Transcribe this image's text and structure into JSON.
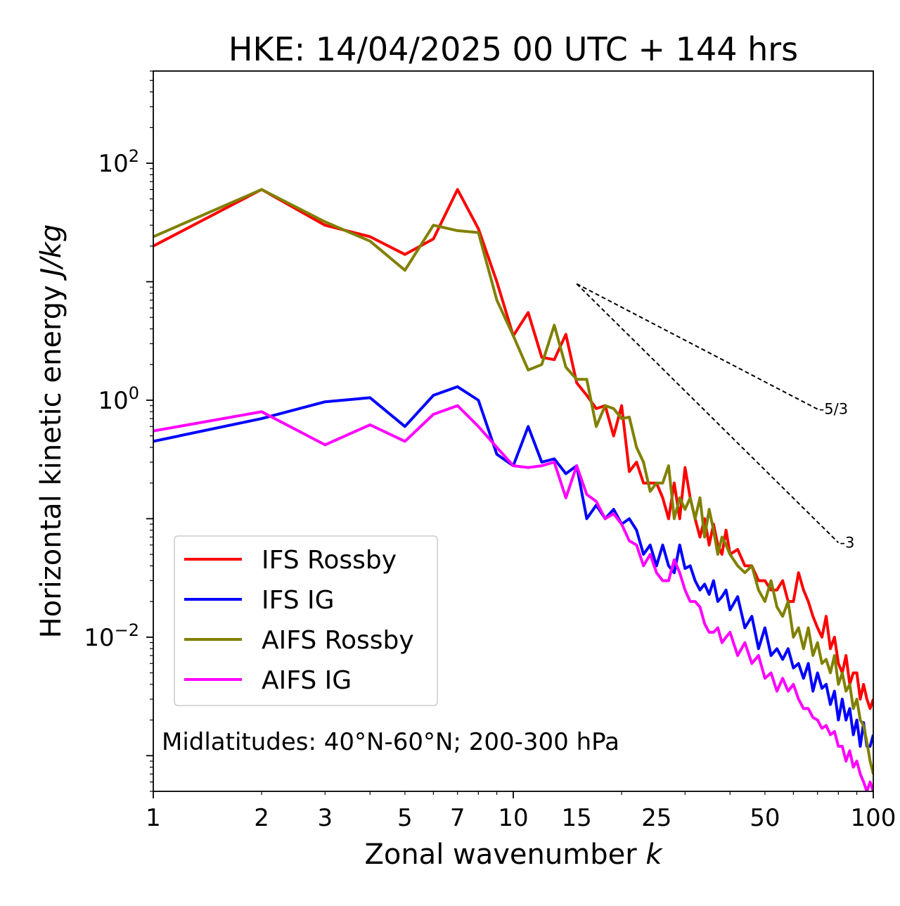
{
  "chart_data": {
    "type": "line",
    "title": "HKE: 14/04/2025 00 UTC + 144 hrs",
    "xlabel_main": "Zonal wavenumber ",
    "xlabel_italic": "k",
    "ylabel_main": "Horizontal kinetic energy ",
    "ylabel_italic": "J/kg",
    "x_scale": "log",
    "y_scale": "log",
    "xlim": [
      1,
      100
    ],
    "ylim": [
      0.0005,
      600
    ],
    "grid": false,
    "legend_position": "lower-left",
    "annotation": "Midlatitudes: 40°N-60°N; 200-300 hPa",
    "x_ticks": [
      {
        "value": 1,
        "label": "1"
      },
      {
        "value": 2,
        "label": "2"
      },
      {
        "value": 3,
        "label": "3"
      },
      {
        "value": 5,
        "label": "5"
      },
      {
        "value": 7,
        "label": "7"
      },
      {
        "value": 10,
        "label": "10"
      },
      {
        "value": 15,
        "label": "15"
      },
      {
        "value": 25,
        "label": "25"
      },
      {
        "value": 50,
        "label": "50"
      },
      {
        "value": 100,
        "label": "100"
      }
    ],
    "y_ticks": [
      {
        "value": 0.01,
        "base": "10",
        "exp": "−2"
      },
      {
        "value": 1,
        "base": "10",
        "exp": "0"
      },
      {
        "value": 100,
        "base": "10",
        "exp": "2"
      }
    ],
    "slope_lines": [
      {
        "label": "-5/3",
        "x0": 15,
        "y0": 9.6,
        "x1": 70,
        "y1": 0.84
      },
      {
        "label": "-3",
        "x0": 15,
        "y0": 9.6,
        "x1": 80,
        "y1": 0.0628
      }
    ],
    "series": [
      {
        "name": "IFS Rossby",
        "color": "#ff0000",
        "x": [
          1,
          2,
          3,
          4,
          5,
          6,
          7,
          8,
          9,
          10,
          11,
          12,
          13,
          14,
          15,
          16,
          17,
          18,
          19,
          20,
          21,
          22,
          23,
          24,
          25,
          26,
          27,
          28,
          29,
          30,
          31,
          32,
          33,
          34,
          35,
          36,
          37,
          38,
          39,
          40,
          42,
          44,
          46,
          48,
          50,
          52,
          54,
          56,
          58,
          60,
          62,
          64,
          66,
          68,
          70,
          72,
          74,
          76,
          78,
          80,
          82,
          84,
          86,
          88,
          90,
          92,
          94,
          96,
          98,
          100
        ],
        "y": [
          20,
          60,
          30,
          24,
          17,
          23,
          60,
          28,
          10,
          3.5,
          5.5,
          2.3,
          2.2,
          3.6,
          1.4,
          1.1,
          0.85,
          0.9,
          0.5,
          0.9,
          0.25,
          0.3,
          0.2,
          0.2,
          0.2,
          0.15,
          0.1,
          0.2,
          0.1,
          0.27,
          0.15,
          0.1,
          0.07,
          0.1,
          0.06,
          0.09,
          0.06,
          0.05,
          0.08,
          0.05,
          0.055,
          0.04,
          0.04,
          0.03,
          0.03,
          0.025,
          0.025,
          0.03,
          0.02,
          0.02,
          0.035,
          0.025,
          0.02,
          0.015,
          0.012,
          0.01,
          0.015,
          0.008,
          0.01,
          0.006,
          0.005,
          0.007,
          0.004,
          0.005,
          0.005,
          0.003,
          0.004,
          0.003,
          0.0025,
          0.003
        ]
      },
      {
        "name": "IFS IG",
        "color": "#0000ff",
        "x": [
          1,
          2,
          3,
          4,
          5,
          6,
          7,
          8,
          9,
          10,
          11,
          12,
          13,
          14,
          15,
          16,
          17,
          18,
          19,
          20,
          21,
          22,
          23,
          24,
          25,
          26,
          27,
          28,
          29,
          30,
          31,
          32,
          33,
          34,
          35,
          36,
          37,
          38,
          39,
          40,
          42,
          44,
          46,
          48,
          50,
          52,
          54,
          56,
          58,
          60,
          62,
          64,
          66,
          68,
          70,
          72,
          74,
          76,
          78,
          80,
          82,
          84,
          86,
          88,
          90,
          92,
          94,
          96,
          98,
          100
        ],
        "y": [
          0.45,
          0.7,
          0.97,
          1.05,
          0.6,
          1.1,
          1.3,
          1.0,
          0.35,
          0.28,
          0.6,
          0.3,
          0.32,
          0.24,
          0.28,
          0.1,
          0.13,
          0.1,
          0.12,
          0.09,
          0.1,
          0.08,
          0.05,
          0.06,
          0.04,
          0.06,
          0.04,
          0.035,
          0.06,
          0.038,
          0.04,
          0.03,
          0.025,
          0.028,
          0.023,
          0.03,
          0.02,
          0.022,
          0.025,
          0.017,
          0.022,
          0.012,
          0.015,
          0.008,
          0.012,
          0.007,
          0.008,
          0.0065,
          0.008,
          0.0055,
          0.006,
          0.0045,
          0.006,
          0.0035,
          0.005,
          0.0037,
          0.004,
          0.0027,
          0.0035,
          0.002,
          0.003,
          0.002,
          0.0025,
          0.0015,
          0.002,
          0.0012,
          0.0019,
          0.0012,
          0.0012,
          0.0015
        ]
      },
      {
        "name": "AIFS Rossby",
        "color": "#808000",
        "x": [
          1,
          2,
          3,
          4,
          5,
          6,
          7,
          8,
          9,
          10,
          11,
          12,
          13,
          14,
          15,
          16,
          17,
          18,
          19,
          20,
          21,
          22,
          23,
          24,
          25,
          26,
          27,
          28,
          29,
          30,
          31,
          32,
          33,
          34,
          35,
          36,
          37,
          38,
          39,
          40,
          42,
          44,
          46,
          48,
          50,
          52,
          54,
          56,
          58,
          60,
          62,
          64,
          66,
          68,
          70,
          72,
          74,
          76,
          78,
          80,
          82,
          84,
          86,
          88,
          90,
          92,
          94,
          96,
          98,
          100
        ],
        "y": [
          24,
          60,
          32,
          22,
          12.5,
          30,
          27,
          26,
          7,
          3.5,
          1.8,
          2.0,
          4.3,
          1.9,
          1.5,
          1.5,
          0.6,
          0.9,
          0.85,
          0.7,
          0.72,
          0.4,
          0.3,
          0.17,
          0.2,
          0.2,
          0.28,
          0.1,
          0.15,
          0.12,
          0.15,
          0.1,
          0.15,
          0.07,
          0.12,
          0.08,
          0.05,
          0.07,
          0.06,
          0.05,
          0.04,
          0.035,
          0.04,
          0.025,
          0.02,
          0.03,
          0.018,
          0.015,
          0.02,
          0.01,
          0.012,
          0.008,
          0.012,
          0.007,
          0.009,
          0.006,
          0.0065,
          0.005,
          0.007,
          0.004,
          0.005,
          0.0035,
          0.004,
          0.0025,
          0.003,
          0.002,
          0.0018,
          0.0013,
          0.0009,
          0.0007
        ]
      },
      {
        "name": "AIFS IG",
        "color": "#ff00ff",
        "x": [
          1,
          2,
          3,
          4,
          5,
          6,
          7,
          8,
          9,
          10,
          11,
          12,
          13,
          14,
          15,
          16,
          17,
          18,
          19,
          20,
          21,
          22,
          23,
          24,
          25,
          26,
          27,
          28,
          29,
          30,
          31,
          32,
          33,
          34,
          35,
          36,
          37,
          38,
          39,
          40,
          42,
          44,
          46,
          48,
          50,
          52,
          54,
          56,
          58,
          60,
          62,
          64,
          66,
          68,
          70,
          72,
          74,
          76,
          78,
          80,
          82,
          84,
          86,
          88,
          90,
          92,
          94,
          96,
          98,
          100
        ],
        "y": [
          0.55,
          0.8,
          0.42,
          0.62,
          0.45,
          0.76,
          0.9,
          0.6,
          0.4,
          0.28,
          0.27,
          0.28,
          0.3,
          0.15,
          0.28,
          0.16,
          0.14,
          0.1,
          0.11,
          0.09,
          0.065,
          0.06,
          0.04,
          0.05,
          0.035,
          0.03,
          0.03,
          0.045,
          0.035,
          0.025,
          0.02,
          0.02,
          0.018,
          0.013,
          0.011,
          0.011,
          0.012,
          0.009,
          0.01,
          0.011,
          0.007,
          0.009,
          0.006,
          0.007,
          0.0045,
          0.005,
          0.0035,
          0.0045,
          0.0035,
          0.004,
          0.003,
          0.0025,
          0.0025,
          0.0021,
          0.002,
          0.0017,
          0.0018,
          0.0015,
          0.0016,
          0.0012,
          0.0012,
          0.0009,
          0.0011,
          0.0008,
          0.0009,
          0.0007,
          0.0006,
          0.0005,
          0.0006,
          0.0005
        ]
      }
    ]
  }
}
